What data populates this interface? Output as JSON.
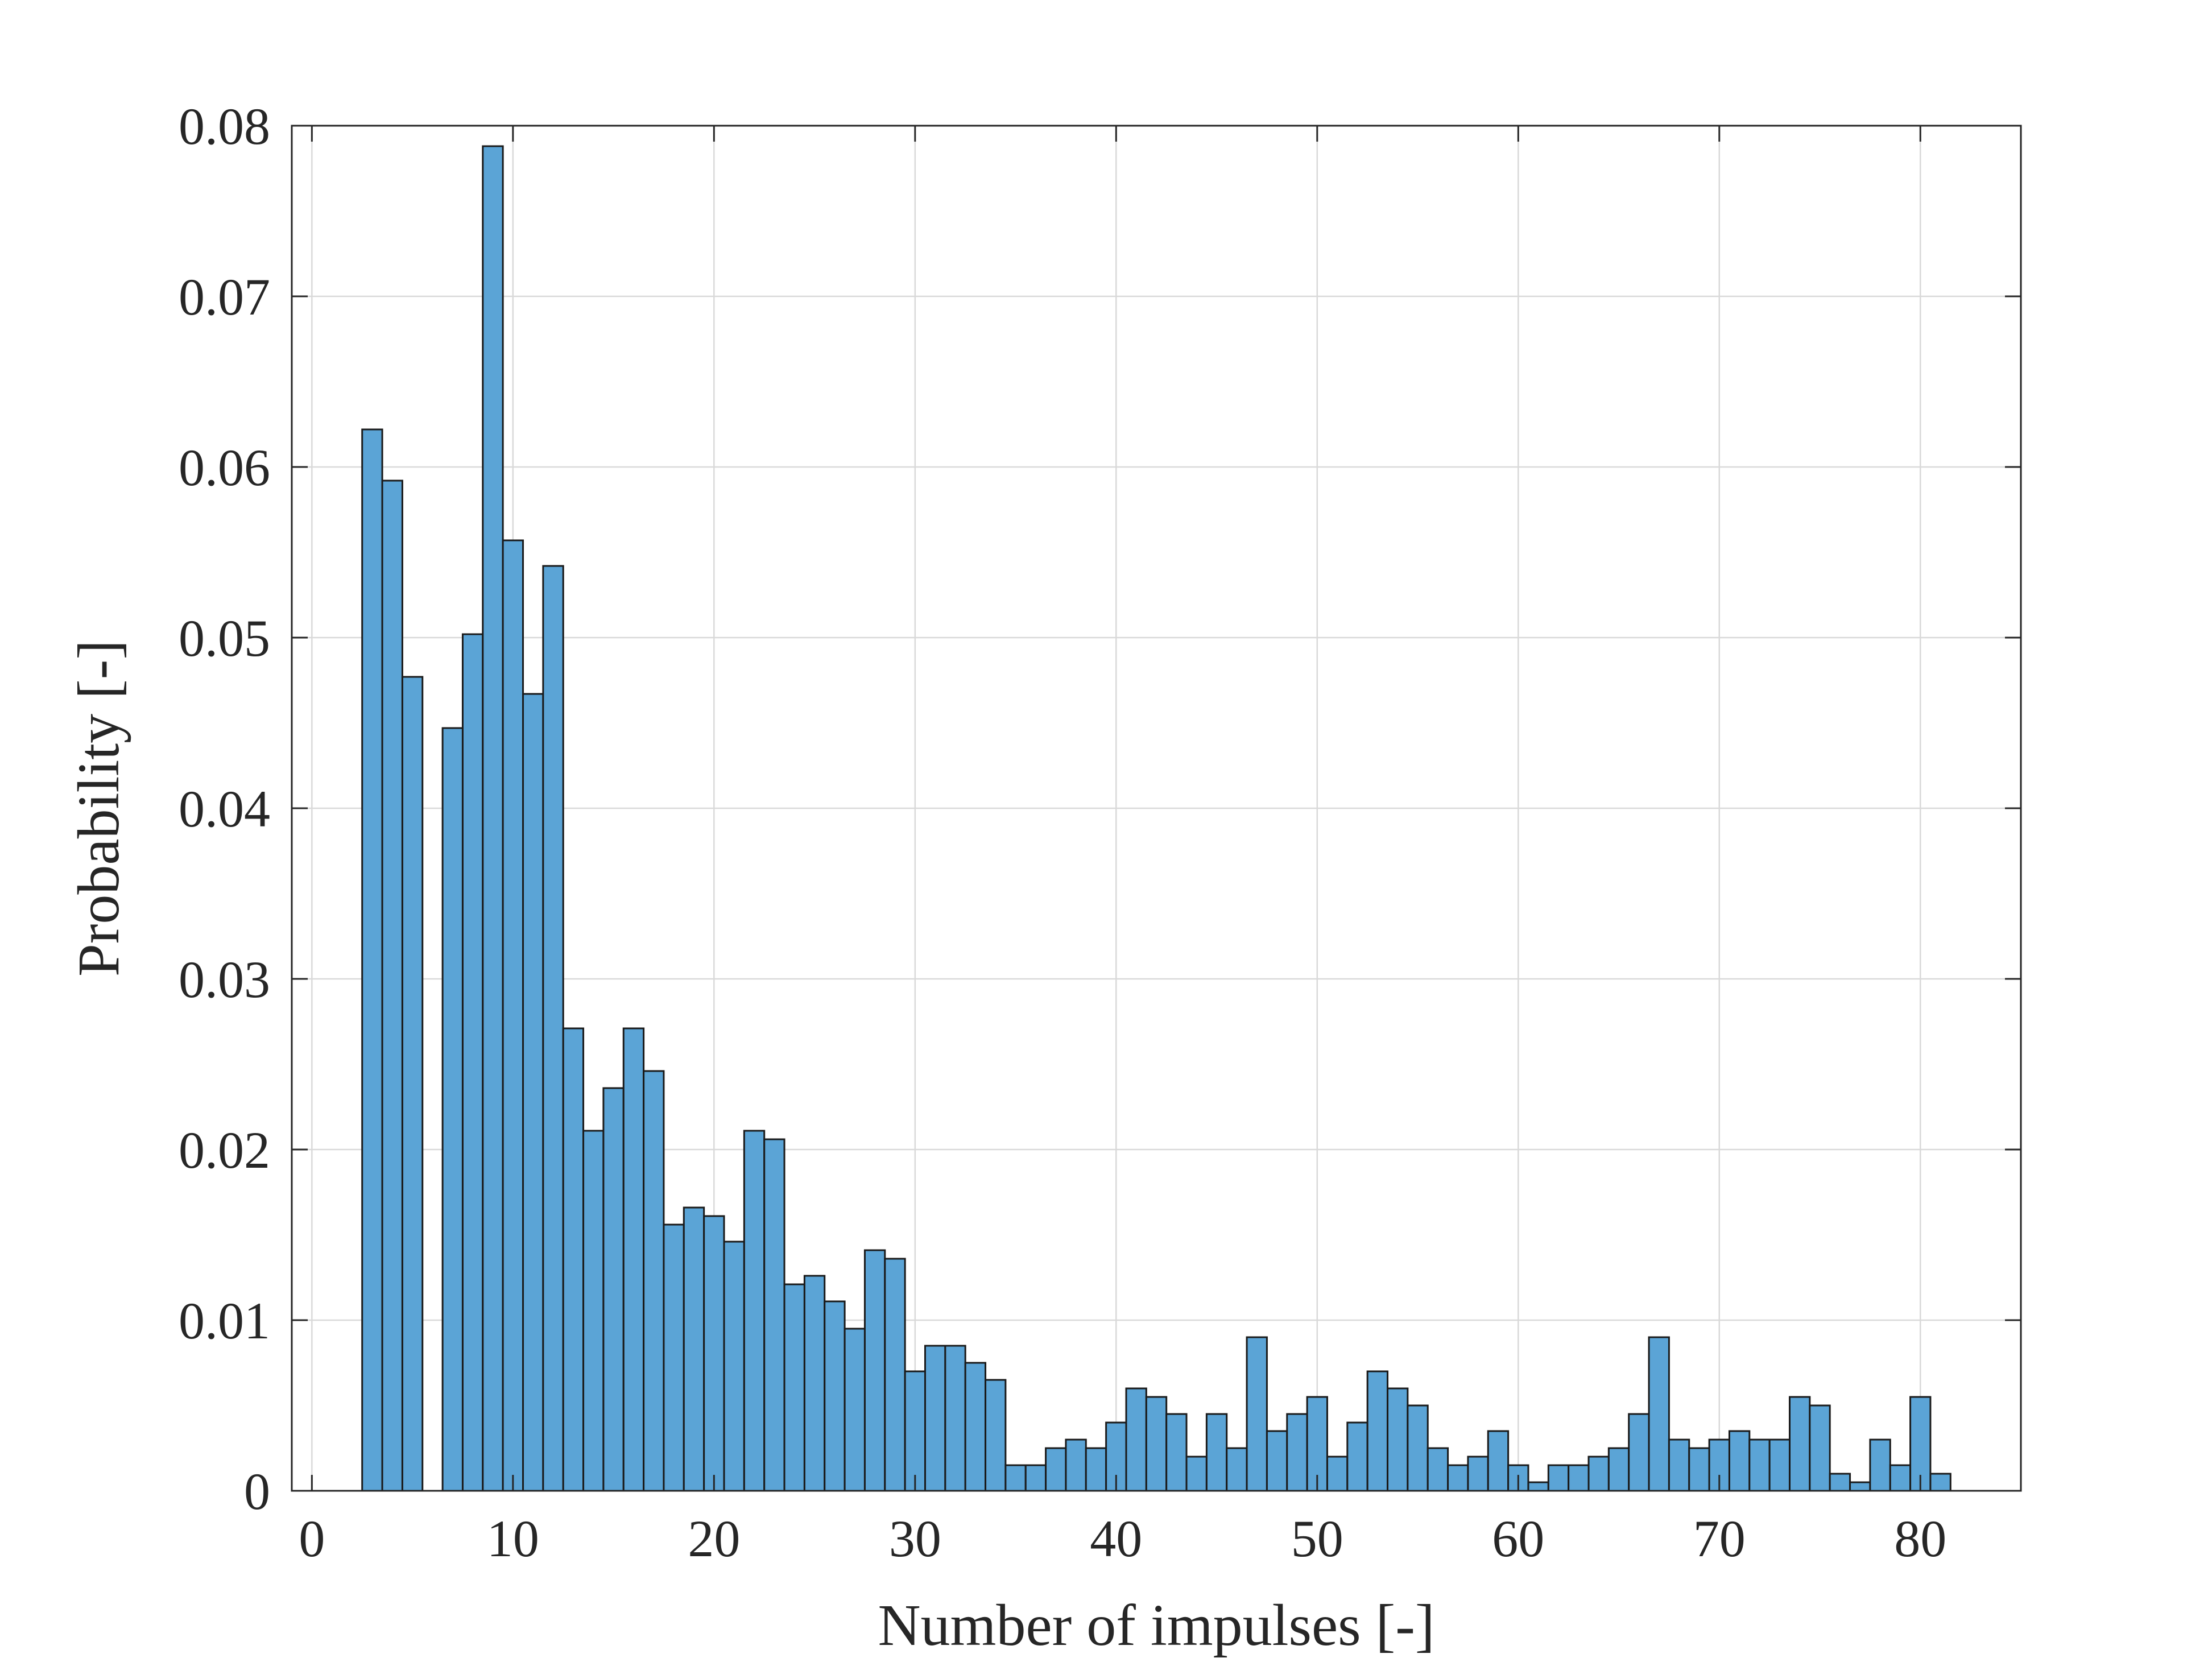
{
  "chart_data": {
    "type": "bar",
    "title": "",
    "xlabel": "Number of impulses [-]",
    "ylabel": "Probability [-]",
    "xlim": [
      -1,
      85
    ],
    "ylim": [
      0,
      0.08
    ],
    "grid": true,
    "bar_color": "#5ba4d6",
    "bar_edge_color": "#1a1a1a",
    "xticks": [
      0,
      10,
      20,
      30,
      40,
      50,
      60,
      70,
      80
    ],
    "yticks": [
      0,
      0.01,
      0.02,
      0.03,
      0.04,
      0.05,
      0.06,
      0.07,
      0.08
    ],
    "xtick_labels": [
      "0",
      "10",
      "20",
      "30",
      "40",
      "50",
      "60",
      "70",
      "80"
    ],
    "ytick_labels": [
      "0",
      "0.01",
      "0.02",
      "0.03",
      "0.04",
      "0.05",
      "0.06",
      "0.07",
      "0.08"
    ],
    "x": [
      3,
      4,
      5,
      7,
      8,
      9,
      10,
      11,
      12,
      13,
      14,
      15,
      16,
      17,
      18,
      19,
      20,
      21,
      22,
      23,
      24,
      25,
      26,
      27,
      28,
      29,
      30,
      31,
      32,
      33,
      34,
      35,
      36,
      37,
      38,
      39,
      40,
      41,
      42,
      43,
      44,
      45,
      46,
      47,
      48,
      49,
      50,
      51,
      52,
      53,
      54,
      55,
      56,
      57,
      58,
      59,
      60,
      61,
      62,
      63,
      64,
      65,
      66,
      67,
      68,
      69,
      70,
      71,
      72,
      73,
      74,
      75,
      76,
      77,
      78,
      79,
      80,
      81
    ],
    "values": [
      0.0622,
      0.0592,
      0.0477,
      0.0447,
      0.0502,
      0.0788,
      0.0557,
      0.0467,
      0.0542,
      0.0271,
      0.0211,
      0.0236,
      0.0271,
      0.0246,
      0.0156,
      0.0166,
      0.0161,
      0.0146,
      0.0211,
      0.0206,
      0.0121,
      0.0126,
      0.0111,
      0.0095,
      0.0141,
      0.0136,
      0.007,
      0.0085,
      0.0085,
      0.0075,
      0.0065,
      0.0015,
      0.0015,
      0.0025,
      0.003,
      0.0025,
      0.004,
      0.006,
      0.0055,
      0.0045,
      0.002,
      0.0045,
      0.0025,
      0.009,
      0.0035,
      0.0045,
      0.0055,
      0.002,
      0.004,
      0.007,
      0.006,
      0.005,
      0.0025,
      0.0015,
      0.002,
      0.0035,
      0.0015,
      0.0005,
      0.0015,
      0.0015,
      0.002,
      0.0025,
      0.0045,
      0.009,
      0.003,
      0.0025,
      0.003,
      0.0035,
      0.003,
      0.003,
      0.0055,
      0.005,
      0.001,
      0.0005,
      0.003,
      0.0015,
      0.0055,
      0.001
    ]
  }
}
